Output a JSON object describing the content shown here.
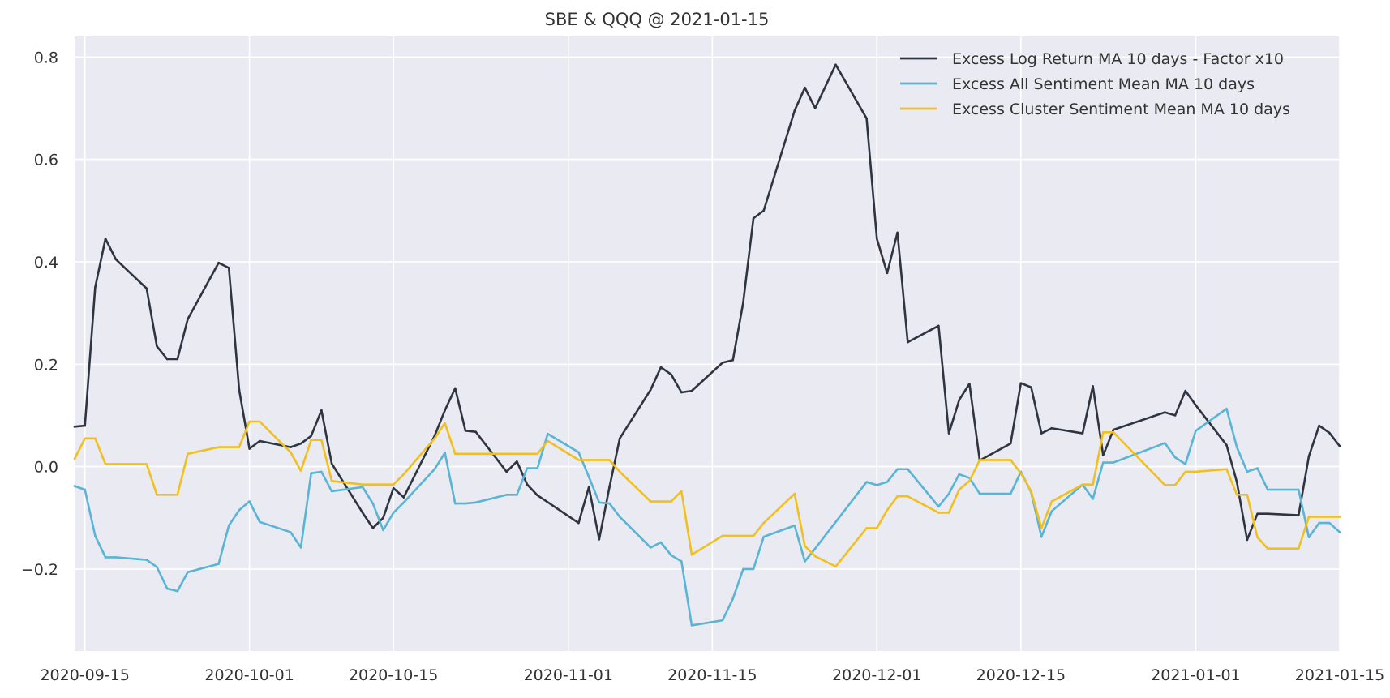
{
  "chart_data": {
    "type": "line",
    "title": "SBE & QQQ @ 2021-01-15",
    "xlabel": "",
    "ylabel": "",
    "x_is_date": true,
    "xlim": [
      "2020-09-14",
      "2021-01-15"
    ],
    "ylim": [
      -0.36,
      0.84
    ],
    "yticks": [
      -0.2,
      0.0,
      0.2,
      0.4,
      0.6,
      0.8
    ],
    "ytick_labels": [
      "−0.2",
      "0.0",
      "0.2",
      "0.4",
      "0.6",
      "0.8"
    ],
    "xticks": [
      "2020-09-15",
      "2020-10-01",
      "2020-10-15",
      "2020-11-01",
      "2020-11-15",
      "2020-12-01",
      "2020-12-15",
      "2021-01-01",
      "2021-01-15"
    ],
    "xtick_labels": [
      "2020-09-15",
      "2020-10-01",
      "2020-10-15",
      "2020-11-01",
      "2020-11-15",
      "2020-12-01",
      "2020-12-15",
      "2021-01-01",
      "2021-01-15"
    ],
    "grid": true,
    "legend_position": "top-right",
    "colors": {
      "background": "#eaeaf2",
      "grid": "#ffffff"
    },
    "series": [
      {
        "name": "Excess Log Return MA 10 days - Factor x10",
        "color": "#2e3440",
        "points": [
          [
            "2020-09-14",
            0.078
          ],
          [
            "2020-09-15",
            0.08
          ],
          [
            "2020-09-16",
            0.35
          ],
          [
            "2020-09-17",
            0.445
          ],
          [
            "2020-09-18",
            0.405
          ],
          [
            "2020-09-21",
            0.348
          ],
          [
            "2020-09-22",
            0.235
          ],
          [
            "2020-09-23",
            0.21
          ],
          [
            "2020-09-24",
            0.21
          ],
          [
            "2020-09-25",
            0.288
          ],
          [
            "2020-09-28",
            0.398
          ],
          [
            "2020-09-29",
            0.388
          ],
          [
            "2020-09-30",
            0.15
          ],
          [
            "2020-10-01",
            0.035
          ],
          [
            "2020-10-02",
            0.05
          ],
          [
            "2020-10-05",
            0.038
          ],
          [
            "2020-10-06",
            0.045
          ],
          [
            "2020-10-07",
            0.06
          ],
          [
            "2020-10-08",
            0.11
          ],
          [
            "2020-10-09",
            0.006
          ],
          [
            "2020-10-12",
            -0.09
          ],
          [
            "2020-10-13",
            -0.12
          ],
          [
            "2020-10-14",
            -0.1
          ],
          [
            "2020-10-15",
            -0.042
          ],
          [
            "2020-10-16",
            -0.06
          ],
          [
            "2020-10-19",
            0.06
          ],
          [
            "2020-10-20",
            0.11
          ],
          [
            "2020-10-21",
            0.153
          ],
          [
            "2020-10-22",
            0.07
          ],
          [
            "2020-10-23",
            0.068
          ],
          [
            "2020-10-26",
            -0.01
          ],
          [
            "2020-10-27",
            0.01
          ],
          [
            "2020-10-28",
            -0.035
          ],
          [
            "2020-10-29",
            -0.056
          ],
          [
            "2020-11-02",
            -0.11
          ],
          [
            "2020-11-03",
            -0.04
          ],
          [
            "2020-11-04",
            -0.142
          ],
          [
            "2020-11-05",
            -0.04
          ],
          [
            "2020-11-06",
            0.055
          ],
          [
            "2020-11-09",
            0.15
          ],
          [
            "2020-11-10",
            0.194
          ],
          [
            "2020-11-11",
            0.18
          ],
          [
            "2020-11-12",
            0.145
          ],
          [
            "2020-11-13",
            0.148
          ],
          [
            "2020-11-16",
            0.203
          ],
          [
            "2020-11-17",
            0.208
          ],
          [
            "2020-11-18",
            0.32
          ],
          [
            "2020-11-19",
            0.485
          ],
          [
            "2020-11-20",
            0.5
          ],
          [
            "2020-11-23",
            0.695
          ],
          [
            "2020-11-24",
            0.74
          ],
          [
            "2020-11-25",
            0.7
          ],
          [
            "2020-11-27",
            0.785
          ],
          [
            "2020-11-30",
            0.68
          ],
          [
            "2020-12-01",
            0.445
          ],
          [
            "2020-12-02",
            0.378
          ],
          [
            "2020-12-03",
            0.457
          ],
          [
            "2020-12-04",
            0.243
          ],
          [
            "2020-12-07",
            0.275
          ],
          [
            "2020-12-08",
            0.065
          ],
          [
            "2020-12-09",
            0.13
          ],
          [
            "2020-12-10",
            0.162
          ],
          [
            "2020-12-11",
            0.012
          ],
          [
            "2020-12-14",
            0.045
          ],
          [
            "2020-12-15",
            0.163
          ],
          [
            "2020-12-16",
            0.155
          ],
          [
            "2020-12-17",
            0.065
          ],
          [
            "2020-12-18",
            0.075
          ],
          [
            "2020-12-21",
            0.065
          ],
          [
            "2020-12-22",
            0.157
          ],
          [
            "2020-12-23",
            0.022
          ],
          [
            "2020-12-24",
            0.072
          ],
          [
            "2020-12-29",
            0.106
          ],
          [
            "2020-12-30",
            0.1
          ],
          [
            "2020-12-31",
            0.148
          ],
          [
            "2021-01-01",
            0.12
          ],
          [
            "2021-01-04",
            0.042
          ],
          [
            "2021-01-05",
            -0.03
          ],
          [
            "2021-01-06",
            -0.143
          ],
          [
            "2021-01-07",
            -0.092
          ],
          [
            "2021-01-08",
            -0.092
          ],
          [
            "2021-01-11",
            -0.095
          ],
          [
            "2021-01-12",
            0.02
          ],
          [
            "2021-01-13",
            0.08
          ],
          [
            "2021-01-14",
            0.066
          ],
          [
            "2021-01-15",
            0.04
          ]
        ]
      },
      {
        "name": "Excess All Sentiment Mean MA 10 days",
        "color": "#5ab4d4",
        "points": [
          [
            "2020-09-14",
            -0.038
          ],
          [
            "2020-09-15",
            -0.045
          ],
          [
            "2020-09-16",
            -0.135
          ],
          [
            "2020-09-17",
            -0.177
          ],
          [
            "2020-09-18",
            -0.177
          ],
          [
            "2020-09-21",
            -0.182
          ],
          [
            "2020-09-22",
            -0.196
          ],
          [
            "2020-09-23",
            -0.238
          ],
          [
            "2020-09-24",
            -0.243
          ],
          [
            "2020-09-25",
            -0.206
          ],
          [
            "2020-09-28",
            -0.19
          ],
          [
            "2020-09-29",
            -0.115
          ],
          [
            "2020-09-30",
            -0.085
          ],
          [
            "2020-10-01",
            -0.068
          ],
          [
            "2020-10-02",
            -0.108
          ],
          [
            "2020-10-05",
            -0.128
          ],
          [
            "2020-10-06",
            -0.158
          ],
          [
            "2020-10-07",
            -0.013
          ],
          [
            "2020-10-08",
            -0.01
          ],
          [
            "2020-10-09",
            -0.048
          ],
          [
            "2020-10-12",
            -0.04
          ],
          [
            "2020-10-13",
            -0.072
          ],
          [
            "2020-10-14",
            -0.124
          ],
          [
            "2020-10-15",
            -0.09
          ],
          [
            "2020-10-16",
            -0.07
          ],
          [
            "2020-10-19",
            -0.005
          ],
          [
            "2020-10-20",
            0.027
          ],
          [
            "2020-10-21",
            -0.072
          ],
          [
            "2020-10-22",
            -0.072
          ],
          [
            "2020-10-23",
            -0.07
          ],
          [
            "2020-10-26",
            -0.055
          ],
          [
            "2020-10-27",
            -0.055
          ],
          [
            "2020-10-28",
            -0.003
          ],
          [
            "2020-10-29",
            -0.003
          ],
          [
            "2020-10-30",
            0.064
          ],
          [
            "2020-11-02",
            0.028
          ],
          [
            "2020-11-03",
            -0.02
          ],
          [
            "2020-11-04",
            -0.07
          ],
          [
            "2020-11-05",
            -0.072
          ],
          [
            "2020-11-06",
            -0.098
          ],
          [
            "2020-11-09",
            -0.158
          ],
          [
            "2020-11-10",
            -0.148
          ],
          [
            "2020-11-11",
            -0.173
          ],
          [
            "2020-11-12",
            -0.185
          ],
          [
            "2020-11-13",
            -0.31
          ],
          [
            "2020-11-16",
            -0.3
          ],
          [
            "2020-11-17",
            -0.258
          ],
          [
            "2020-11-18",
            -0.2
          ],
          [
            "2020-11-19",
            -0.2
          ],
          [
            "2020-11-20",
            -0.137
          ],
          [
            "2020-11-23",
            -0.115
          ],
          [
            "2020-11-24",
            -0.185
          ],
          [
            "2020-11-25",
            -0.16
          ],
          [
            "2020-11-30",
            -0.03
          ],
          [
            "2020-12-01",
            -0.036
          ],
          [
            "2020-12-02",
            -0.03
          ],
          [
            "2020-12-03",
            -0.005
          ],
          [
            "2020-12-04",
            -0.005
          ],
          [
            "2020-12-07",
            -0.078
          ],
          [
            "2020-12-08",
            -0.053
          ],
          [
            "2020-12-09",
            -0.015
          ],
          [
            "2020-12-10",
            -0.022
          ],
          [
            "2020-12-11",
            -0.053
          ],
          [
            "2020-12-14",
            -0.053
          ],
          [
            "2020-12-15",
            -0.01
          ],
          [
            "2020-12-16",
            -0.05
          ],
          [
            "2020-12-17",
            -0.137
          ],
          [
            "2020-12-18",
            -0.087
          ],
          [
            "2020-12-21",
            -0.035
          ],
          [
            "2020-12-22",
            -0.063
          ],
          [
            "2020-12-23",
            0.008
          ],
          [
            "2020-12-24",
            0.008
          ],
          [
            "2020-12-29",
            0.046
          ],
          [
            "2020-12-30",
            0.018
          ],
          [
            "2020-12-31",
            0.005
          ],
          [
            "2021-01-01",
            0.07
          ],
          [
            "2021-01-04",
            0.113
          ],
          [
            "2021-01-05",
            0.038
          ],
          [
            "2021-01-06",
            -0.01
          ],
          [
            "2021-01-07",
            -0.003
          ],
          [
            "2021-01-08",
            -0.045
          ],
          [
            "2021-01-11",
            -0.045
          ],
          [
            "2021-01-12",
            -0.138
          ],
          [
            "2021-01-13",
            -0.11
          ],
          [
            "2021-01-14",
            -0.11
          ],
          [
            "2021-01-15",
            -0.128
          ]
        ]
      },
      {
        "name": "Excess Cluster Sentiment Mean MA 10 days",
        "color": "#f0c020",
        "points": [
          [
            "2020-09-14",
            0.015
          ],
          [
            "2020-09-15",
            0.055
          ],
          [
            "2020-09-16",
            0.055
          ],
          [
            "2020-09-17",
            0.005
          ],
          [
            "2020-09-18",
            0.005
          ],
          [
            "2020-09-21",
            0.005
          ],
          [
            "2020-09-22",
            -0.055
          ],
          [
            "2020-09-23",
            -0.055
          ],
          [
            "2020-09-24",
            -0.055
          ],
          [
            "2020-09-25",
            0.025
          ],
          [
            "2020-09-28",
            0.038
          ],
          [
            "2020-09-29",
            0.038
          ],
          [
            "2020-09-30",
            0.038
          ],
          [
            "2020-10-01",
            0.088
          ],
          [
            "2020-10-02",
            0.088
          ],
          [
            "2020-10-05",
            0.028
          ],
          [
            "2020-10-06",
            -0.008
          ],
          [
            "2020-10-07",
            0.052
          ],
          [
            "2020-10-08",
            0.052
          ],
          [
            "2020-10-09",
            -0.028
          ],
          [
            "2020-10-12",
            -0.035
          ],
          [
            "2020-10-13",
            -0.035
          ],
          [
            "2020-10-14",
            -0.035
          ],
          [
            "2020-10-15",
            -0.035
          ],
          [
            "2020-10-16",
            -0.015
          ],
          [
            "2020-10-19",
            0.055
          ],
          [
            "2020-10-20",
            0.085
          ],
          [
            "2020-10-21",
            0.025
          ],
          [
            "2020-10-22",
            0.025
          ],
          [
            "2020-10-23",
            0.025
          ],
          [
            "2020-10-26",
            0.025
          ],
          [
            "2020-10-27",
            0.025
          ],
          [
            "2020-10-28",
            0.025
          ],
          [
            "2020-10-29",
            0.025
          ],
          [
            "2020-10-30",
            0.05
          ],
          [
            "2020-11-02",
            0.013
          ],
          [
            "2020-11-03",
            0.013
          ],
          [
            "2020-11-04",
            0.013
          ],
          [
            "2020-11-05",
            0.013
          ],
          [
            "2020-11-06",
            -0.01
          ],
          [
            "2020-11-09",
            -0.068
          ],
          [
            "2020-11-10",
            -0.068
          ],
          [
            "2020-11-11",
            -0.068
          ],
          [
            "2020-11-12",
            -0.048
          ],
          [
            "2020-11-13",
            -0.172
          ],
          [
            "2020-11-16",
            -0.135
          ],
          [
            "2020-11-17",
            -0.135
          ],
          [
            "2020-11-18",
            -0.135
          ],
          [
            "2020-11-19",
            -0.135
          ],
          [
            "2020-11-20",
            -0.11
          ],
          [
            "2020-11-23",
            -0.053
          ],
          [
            "2020-11-24",
            -0.155
          ],
          [
            "2020-11-25",
            -0.175
          ],
          [
            "2020-11-27",
            -0.195
          ],
          [
            "2020-11-30",
            -0.12
          ],
          [
            "2020-12-01",
            -0.12
          ],
          [
            "2020-12-02",
            -0.085
          ],
          [
            "2020-12-03",
            -0.058
          ],
          [
            "2020-12-04",
            -0.058
          ],
          [
            "2020-12-07",
            -0.09
          ],
          [
            "2020-12-08",
            -0.09
          ],
          [
            "2020-12-09",
            -0.045
          ],
          [
            "2020-12-10",
            -0.028
          ],
          [
            "2020-12-11",
            0.013
          ],
          [
            "2020-12-14",
            0.013
          ],
          [
            "2020-12-15",
            -0.013
          ],
          [
            "2020-12-16",
            -0.048
          ],
          [
            "2020-12-17",
            -0.12
          ],
          [
            "2020-12-18",
            -0.068
          ],
          [
            "2020-12-21",
            -0.035
          ],
          [
            "2020-12-22",
            -0.035
          ],
          [
            "2020-12-23",
            0.067
          ],
          [
            "2020-12-24",
            0.067
          ],
          [
            "2020-12-29",
            -0.036
          ],
          [
            "2020-12-30",
            -0.036
          ],
          [
            "2020-12-31",
            -0.01
          ],
          [
            "2021-01-01",
            -0.01
          ],
          [
            "2021-01-04",
            -0.005
          ],
          [
            "2021-01-05",
            -0.055
          ],
          [
            "2021-01-06",
            -0.055
          ],
          [
            "2021-01-07",
            -0.138
          ],
          [
            "2021-01-08",
            -0.16
          ],
          [
            "2021-01-11",
            -0.16
          ],
          [
            "2021-01-12",
            -0.098
          ],
          [
            "2021-01-13",
            -0.098
          ],
          [
            "2021-01-14",
            -0.098
          ],
          [
            "2021-01-15",
            -0.098
          ]
        ]
      }
    ]
  }
}
